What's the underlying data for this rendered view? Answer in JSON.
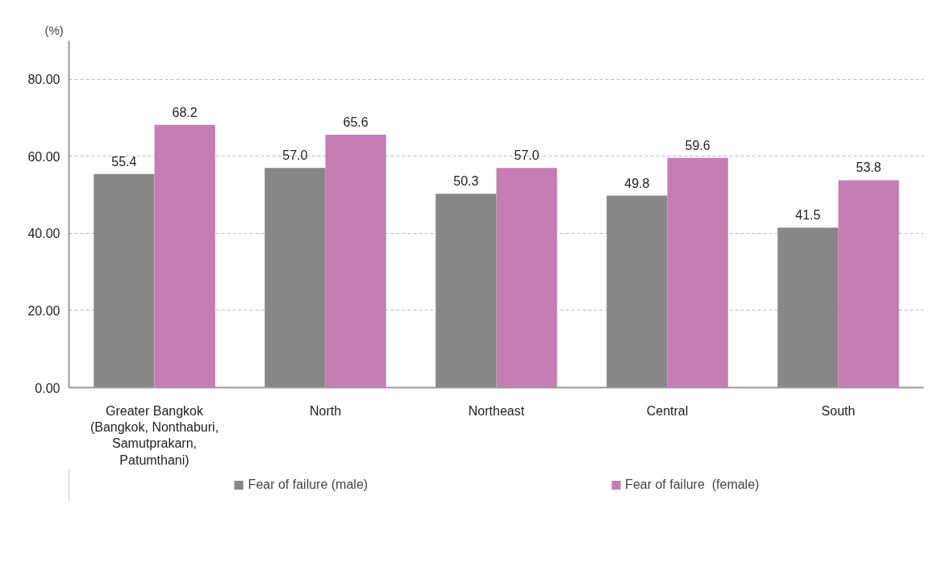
{
  "chart_data": {
    "type": "bar",
    "ylabel": "(%)",
    "categories": [
      "Greater Bangkok\n(Bangkok, Nonthaburi,\nSamutprakarn,\nPatumthani)",
      "North",
      "Northeast",
      "Central",
      "South"
    ],
    "series": [
      {
        "name": "Fear of failure (male)",
        "color": "#878787",
        "values": [
          55.4,
          57.0,
          50.3,
          49.8,
          41.5
        ],
        "value_labels": [
          "55.4",
          "57.0",
          "50.3",
          "49.8",
          "41.5"
        ]
      },
      {
        "name": "Fear of failure  (female)",
        "color": "#c57db3",
        "values": [
          68.2,
          65.6,
          57.0,
          59.6,
          53.8
        ],
        "value_labels": [
          "68.2",
          "65.6",
          "57.0",
          "59.6",
          "53.8"
        ]
      }
    ],
    "ylim": [
      0,
      90
    ],
    "yticks": [
      {
        "value": 0,
        "label": "0.00"
      },
      {
        "value": 20,
        "label": "20.00"
      },
      {
        "value": 40,
        "label": "40.00"
      },
      {
        "value": 60,
        "label": "60.00"
      },
      {
        "value": 80,
        "label": "80.00"
      }
    ],
    "grid": "y",
    "legend": "bottom"
  }
}
